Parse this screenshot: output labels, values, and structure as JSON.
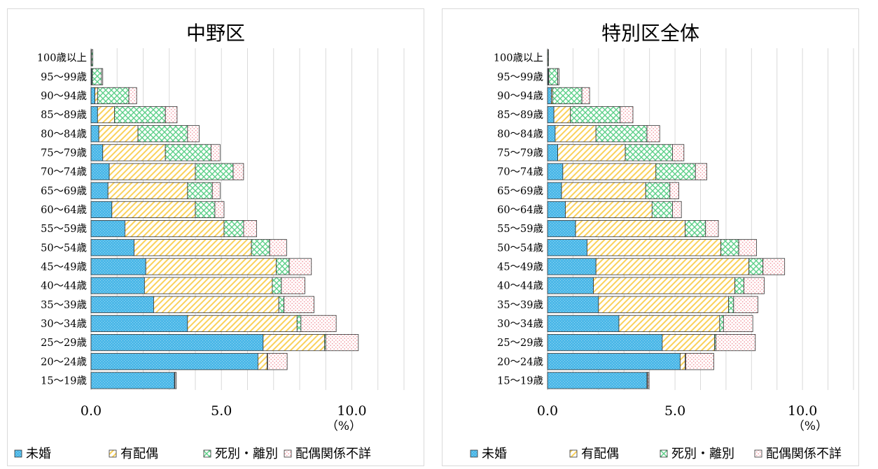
{
  "chart_data": [
    {
      "type": "bar",
      "stacked": true,
      "orientation": "horizontal",
      "title": "中野区",
      "categories": [
        "100歳以上",
        "95～99歳",
        "90～94歳",
        "85～89歳",
        "80～84歳",
        "75～79歳",
        "70～74歳",
        "65～69歳",
        "60～64歳",
        "55～59歳",
        "50～54歳",
        "45～49歳",
        "40～44歳",
        "35～39歳",
        "30～34歳",
        "25～29歳",
        "20～24歳",
        "15～19歳"
      ],
      "series": [
        {
          "name": "未婚",
          "values": [
            0.02,
            0.03,
            0.15,
            0.25,
            0.3,
            0.45,
            0.7,
            0.65,
            0.8,
            1.3,
            1.65,
            2.1,
            2.05,
            2.4,
            3.7,
            6.6,
            6.4,
            3.2
          ]
        },
        {
          "name": "有配偶",
          "values": [
            0.0,
            0.02,
            0.1,
            0.65,
            1.5,
            2.4,
            3.3,
            3.05,
            3.2,
            3.8,
            4.5,
            5.0,
            4.9,
            4.8,
            4.2,
            2.35,
            0.35,
            0.02
          ]
        },
        {
          "name": "死別・離別",
          "values": [
            0.05,
            0.35,
            1.2,
            1.95,
            1.9,
            1.75,
            1.45,
            0.95,
            0.75,
            0.75,
            0.7,
            0.5,
            0.35,
            0.2,
            0.15,
            0.05,
            0.02,
            0.0
          ]
        },
        {
          "name": "配偶関係不詳",
          "values": [
            0.0,
            0.05,
            0.3,
            0.45,
            0.45,
            0.35,
            0.4,
            0.3,
            0.35,
            0.5,
            0.65,
            0.85,
            0.9,
            1.15,
            1.35,
            1.25,
            0.75,
            0.05
          ]
        }
      ],
      "xlim": [
        0,
        12
      ],
      "ticks": [
        "0.0",
        "5.0",
        "10.0"
      ],
      "tick_values": [
        0,
        5,
        10
      ],
      "unit": "（%）",
      "legend_position": "bottom",
      "grid": true
    },
    {
      "type": "bar",
      "stacked": true,
      "orientation": "horizontal",
      "title": "特別区全体",
      "categories": [
        "100歳以上",
        "95～99歳",
        "90～94歳",
        "85～89歳",
        "80～84歳",
        "75～79歳",
        "70～74歳",
        "65～69歳",
        "60～64歳",
        "55～59歳",
        "50～54歳",
        "45～49歳",
        "40～44歳",
        "35～39歳",
        "30～34歳",
        "25～29歳",
        "20～24歳",
        "15～19歳"
      ],
      "series": [
        {
          "name": "未婚",
          "values": [
            0.01,
            0.03,
            0.15,
            0.25,
            0.3,
            0.4,
            0.6,
            0.55,
            0.7,
            1.1,
            1.55,
            1.9,
            1.8,
            2.0,
            2.8,
            4.5,
            5.2,
            3.9
          ]
        },
        {
          "name": "有配偶",
          "values": [
            0.0,
            0.02,
            0.05,
            0.65,
            1.6,
            2.65,
            3.65,
            3.3,
            3.4,
            4.3,
            5.25,
            6.0,
            5.55,
            5.1,
            3.95,
            2.05,
            0.2,
            0.03
          ]
        },
        {
          "name": "死別・離別",
          "values": [
            0.03,
            0.35,
            1.15,
            1.95,
            2.0,
            1.85,
            1.55,
            0.95,
            0.8,
            0.8,
            0.7,
            0.55,
            0.35,
            0.2,
            0.15,
            0.05,
            0.02,
            0.0
          ]
        },
        {
          "name": "配偶関係不詳",
          "values": [
            0.0,
            0.05,
            0.3,
            0.5,
            0.5,
            0.45,
            0.45,
            0.35,
            0.35,
            0.5,
            0.7,
            0.85,
            0.8,
            0.95,
            1.15,
            1.55,
            1.1,
            0.05
          ]
        }
      ],
      "xlim": [
        0,
        12
      ],
      "ticks": [
        "0.0",
        "5.0",
        "10.0"
      ],
      "tick_values": [
        0,
        5,
        10
      ],
      "unit": "（%）",
      "legend_position": "bottom",
      "grid": true
    }
  ],
  "colors": {
    "unmarried": "#4cb8e8",
    "married": "#fad15a",
    "widowed": "#5ccf88",
    "unknown": "#f3a0a8",
    "grid": "#d9d9d9",
    "bar_edge": "#333333"
  }
}
